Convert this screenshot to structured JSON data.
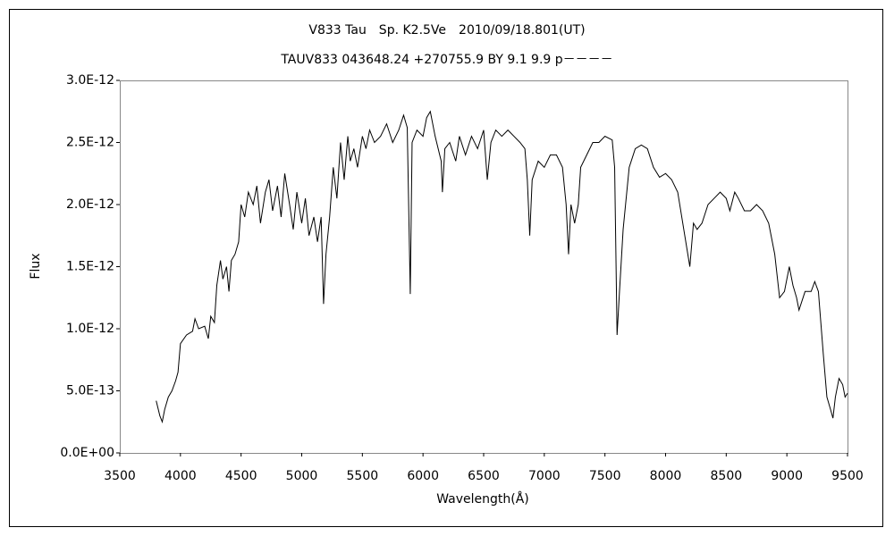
{
  "chart_data": {
    "type": "line",
    "title": "V833 Tau　Sp. K2.5Ve　2010/09/18.801(UT)",
    "subtitle": "TAUV833 043648.24 +270755.9 BY 9.1 9.9 p－－－－",
    "x_label": "Wavelength(Å)",
    "y_label": "Flux",
    "color": "#000000",
    "grid": false,
    "x": [
      3800,
      3830,
      3850,
      3870,
      3900,
      3930,
      3960,
      3980,
      4000,
      4050,
      4100,
      4120,
      4150,
      4200,
      4230,
      4250,
      4280,
      4300,
      4330,
      4350,
      4380,
      4400,
      4420,
      4450,
      4480,
      4500,
      4530,
      4560,
      4600,
      4630,
      4660,
      4700,
      4730,
      4760,
      4800,
      4830,
      4860,
      4900,
      4930,
      4960,
      5000,
      5030,
      5060,
      5100,
      5130,
      5160,
      5180,
      5200,
      5230,
      5260,
      5290,
      5320,
      5350,
      5380,
      5400,
      5430,
      5460,
      5500,
      5530,
      5560,
      5600,
      5650,
      5700,
      5750,
      5800,
      5840,
      5870,
      5895,
      5910,
      5950,
      6000,
      6030,
      6060,
      6100,
      6150,
      6160,
      6180,
      6220,
      6270,
      6300,
      6350,
      6400,
      6450,
      6500,
      6530,
      6560,
      6600,
      6650,
      6700,
      6750,
      6800,
      6840,
      6860,
      6880,
      6900,
      6950,
      7000,
      7050,
      7100,
      7150,
      7180,
      7200,
      7220,
      7250,
      7280,
      7300,
      7350,
      7400,
      7450,
      7500,
      7560,
      7580,
      7600,
      7620,
      7650,
      7700,
      7750,
      7800,
      7850,
      7900,
      7950,
      8000,
      8050,
      8100,
      8150,
      8200,
      8230,
      8260,
      8300,
      8350,
      8400,
      8450,
      8500,
      8530,
      8570,
      8600,
      8650,
      8700,
      8750,
      8800,
      8850,
      8900,
      8940,
      8980,
      9020,
      9050,
      9080,
      9100,
      9150,
      9200,
      9230,
      9260,
      9300,
      9330,
      9360,
      9380,
      9400,
      9430,
      9460,
      9480,
      9500
    ],
    "values": [
      4.2e-13,
      3e-13,
      2.5e-13,
      3.5e-13,
      4.5e-13,
      5e-13,
      5.8e-13,
      6.5e-13,
      8.8e-13,
      9.5e-13,
      9.8e-13,
      1.08e-12,
      1e-12,
      1.02e-12,
      9.2e-13,
      1.1e-12,
      1.05e-12,
      1.35e-12,
      1.55e-12,
      1.4e-12,
      1.5e-12,
      1.3e-12,
      1.55e-12,
      1.6e-12,
      1.7e-12,
      2e-12,
      1.9e-12,
      2.1e-12,
      2e-12,
      2.15e-12,
      1.85e-12,
      2.1e-12,
      2.2e-12,
      1.95e-12,
      2.15e-12,
      1.9e-12,
      2.25e-12,
      2e-12,
      1.8e-12,
      2.1e-12,
      1.85e-12,
      2.05e-12,
      1.75e-12,
      1.9e-12,
      1.7e-12,
      1.9e-12,
      1.2e-12,
      1.6e-12,
      1.9e-12,
      2.3e-12,
      2.05e-12,
      2.5e-12,
      2.2e-12,
      2.55e-12,
      2.35e-12,
      2.45e-12,
      2.3e-12,
      2.55e-12,
      2.45e-12,
      2.6e-12,
      2.5e-12,
      2.55e-12,
      2.65e-12,
      2.5e-12,
      2.6e-12,
      2.72e-12,
      2.62e-12,
      1.28e-12,
      2.5e-12,
      2.6e-12,
      2.55e-12,
      2.7e-12,
      2.75e-12,
      2.55e-12,
      2.35e-12,
      2.1e-12,
      2.45e-12,
      2.5e-12,
      2.35e-12,
      2.55e-12,
      2.4e-12,
      2.55e-12,
      2.45e-12,
      2.6e-12,
      2.2e-12,
      2.5e-12,
      2.6e-12,
      2.55e-12,
      2.6e-12,
      2.55e-12,
      2.5e-12,
      2.45e-12,
      2.2e-12,
      1.75e-12,
      2.2e-12,
      2.35e-12,
      2.3e-12,
      2.4e-12,
      2.4e-12,
      2.3e-12,
      2e-12,
      1.6e-12,
      2e-12,
      1.85e-12,
      2e-12,
      2.3e-12,
      2.4e-12,
      2.5e-12,
      2.5e-12,
      2.55e-12,
      2.52e-12,
      2.3e-12,
      9.5e-13,
      1.3e-12,
      1.8e-12,
      2.3e-12,
      2.45e-12,
      2.48e-12,
      2.45e-12,
      2.3e-12,
      2.22e-12,
      2.25e-12,
      2.2e-12,
      2.1e-12,
      1.8e-12,
      1.5e-12,
      1.85e-12,
      1.8e-12,
      1.85e-12,
      2e-12,
      2.05e-12,
      2.1e-12,
      2.05e-12,
      1.95e-12,
      2.1e-12,
      2.05e-12,
      1.95e-12,
      1.95e-12,
      2e-12,
      1.95e-12,
      1.85e-12,
      1.6e-12,
      1.25e-12,
      1.3e-12,
      1.5e-12,
      1.35e-12,
      1.25e-12,
      1.15e-12,
      1.3e-12,
      1.3e-12,
      1.38e-12,
      1.3e-12,
      8e-13,
      4.5e-13,
      3.5e-13,
      2.8e-13,
      4.5e-13,
      6e-13,
      5.5e-13,
      4.5e-13,
      4.8e-13
    ],
    "xlim": [
      3500,
      9500
    ],
    "xticks": [
      3500,
      4000,
      4500,
      5000,
      5500,
      6000,
      6500,
      7000,
      7500,
      8000,
      8500,
      9000,
      9500
    ],
    "ylim": [
      0,
      3e-12
    ],
    "yticks": [
      {
        "value": 0,
        "label": "0.0E+00"
      },
      {
        "value": 5e-13,
        "label": "5.0E-13"
      },
      {
        "value": 1e-12,
        "label": "1.0E-12"
      },
      {
        "value": 1.5e-12,
        "label": "1.5E-12"
      },
      {
        "value": 2e-12,
        "label": "2.0E-12"
      },
      {
        "value": 2.5e-12,
        "label": "2.5E-12"
      },
      {
        "value": 3e-12,
        "label": "3.0E-12"
      }
    ]
  }
}
